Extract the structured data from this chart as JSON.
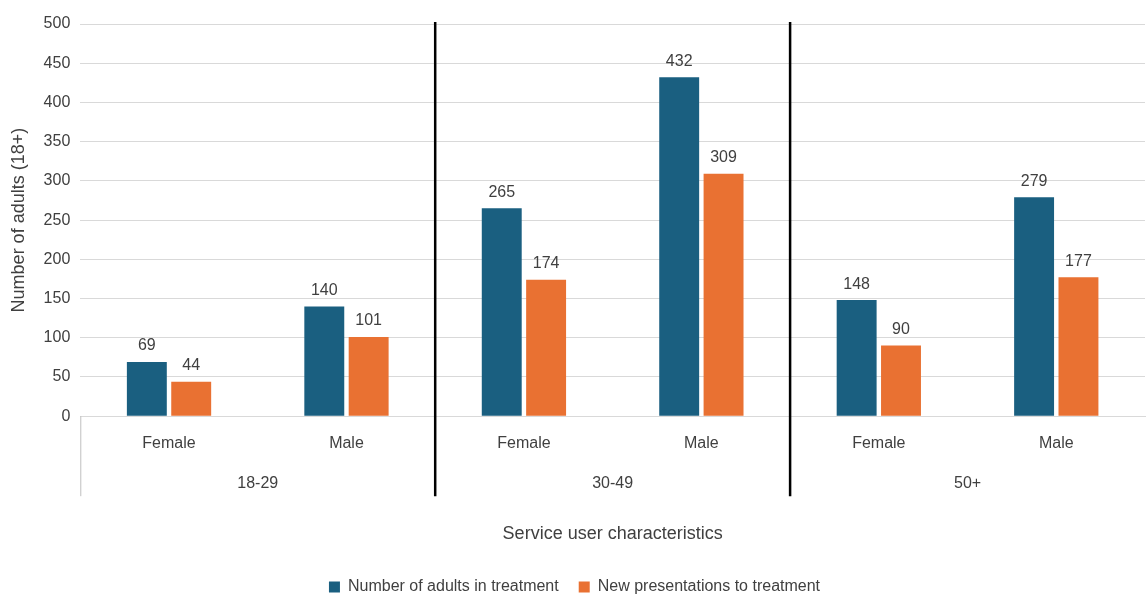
{
  "chart_data": {
    "type": "bar",
    "xlabel": "Service user characteristics",
    "ylabel": "Number of adults (18+)",
    "categories": [
      "Female",
      "Male",
      "Female",
      "Male",
      "Female",
      "Male"
    ],
    "series": [
      {
        "name": "Number of adults in treatment",
        "color": "#1a5f80",
        "values": [
          69,
          140,
          265,
          432,
          148,
          279
        ]
      },
      {
        "name": "New presentations to treatment",
        "color": "#e97132",
        "values": [
          44,
          101,
          174,
          309,
          90,
          177
        ]
      }
    ],
    "annotations": [
      "18-29",
      "30-49",
      "50+"
    ],
    "ylim": [
      0,
      500
    ],
    "yticks": [
      0,
      50,
      100,
      150,
      200,
      250,
      300,
      350,
      400,
      450,
      500
    ],
    "grid": "y",
    "legend": "bottom",
    "data_labels": true
  }
}
